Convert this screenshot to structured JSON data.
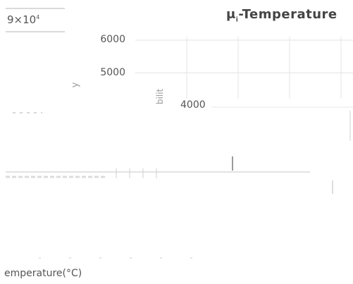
{
  "chart_data": {
    "type": "line",
    "title": "μ",
    "title_subscript": "i",
    "title_suffix": "-Temperature",
    "corner_label": "9×10",
    "corner_exponent": "4",
    "xlabel": "emperature(°C)",
    "ylabel_fragment": "y",
    "ylabel_fragment_2": "bilit",
    "yticks": [
      "6000",
      "5000",
      "4000"
    ],
    "ylim": [
      4000,
      6000
    ],
    "grid": true,
    "series": []
  }
}
